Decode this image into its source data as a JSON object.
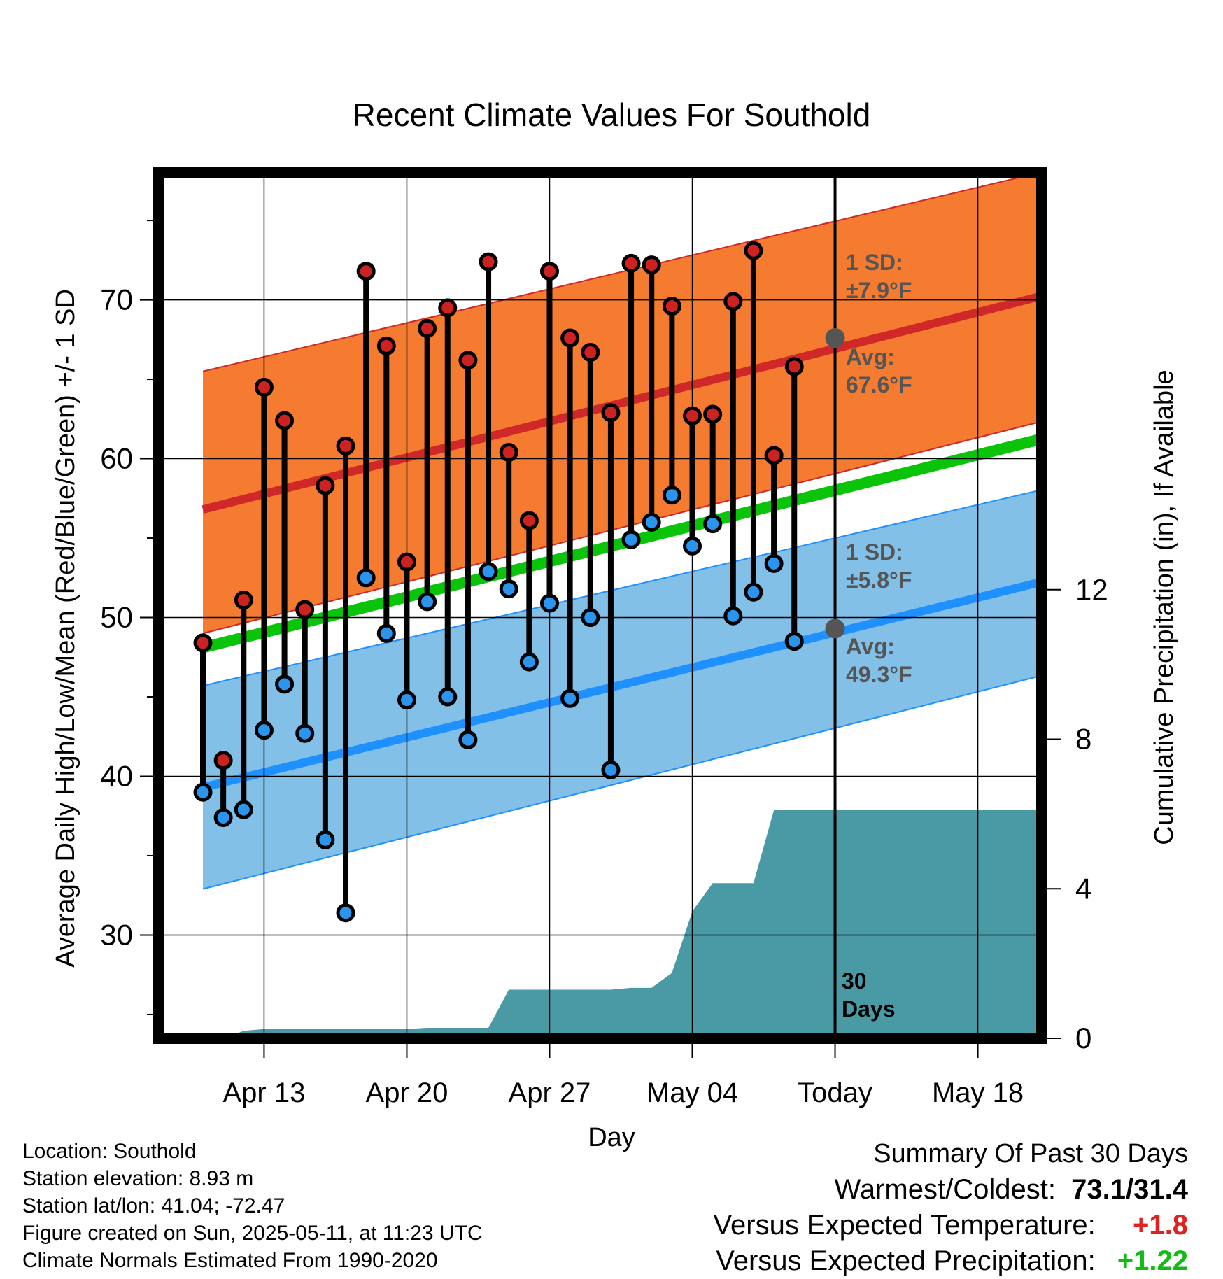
{
  "chart_data": {
    "type": "line",
    "title": "Recent Climate Values For Southold",
    "xlabel": "Day",
    "ylabel": "Average Daily High/Low/Mean (Red/Blue/Green) +/- 1 SD",
    "y2label": "Cumulative Precipitation (in), If Available",
    "xlim": [
      "2025-04-10",
      "2025-05-21"
    ],
    "ylim": [
      23.5,
      78
    ],
    "y2lim": [
      0,
      23.15
    ],
    "yticks": [
      "30",
      "40",
      "50",
      "60",
      "70"
    ],
    "y2ticks": [
      "0",
      "4",
      "8",
      "12"
    ],
    "xticks": [
      {
        "date": "2025-04-13",
        "label": "Apr 13"
      },
      {
        "date": "2025-04-20",
        "label": "Apr 20"
      },
      {
        "date": "2025-04-27",
        "label": "Apr 27"
      },
      {
        "date": "2025-05-04",
        "label": "May 04"
      },
      {
        "date": "2025-05-11",
        "label": "Today"
      },
      {
        "date": "2025-05-18",
        "label": "May 18"
      }
    ],
    "today": "2025-05-11",
    "grid": true,
    "colors": {
      "high_band": "#f47b30",
      "high_line": "#d02828",
      "low_band": "#82c0e8",
      "low_line": "#1e90ff",
      "mean_line": "#0ac40a",
      "precip": "#4a9aa5",
      "high_marker": "#cc2222",
      "low_marker": "#2b95ee",
      "annotation": "#555555"
    },
    "normals": {
      "dates": [
        "2025-04-10",
        "2025-05-21"
      ],
      "avg_high": [
        56.8,
        70.2
      ],
      "avg_low": [
        39.3,
        52.2
      ],
      "avg_mean": [
        48.1,
        61.2
      ],
      "high_sd_band": [
        [
          49.0,
          62.3
        ],
        [
          65.5,
          78.0
        ]
      ],
      "low_sd_band": [
        [
          32.9,
          46.3
        ],
        [
          45.7,
          58.0
        ]
      ]
    },
    "series": [
      {
        "name": "High",
        "dates": [
          "2025-04-10",
          "2025-04-11",
          "2025-04-12",
          "2025-04-13",
          "2025-04-14",
          "2025-04-15",
          "2025-04-16",
          "2025-04-17",
          "2025-04-18",
          "2025-04-19",
          "2025-04-20",
          "2025-04-21",
          "2025-04-22",
          "2025-04-23",
          "2025-04-24",
          "2025-04-25",
          "2025-04-26",
          "2025-04-27",
          "2025-04-28",
          "2025-04-29",
          "2025-04-30",
          "2025-05-01",
          "2025-05-02",
          "2025-05-03",
          "2025-05-04",
          "2025-05-05",
          "2025-05-06",
          "2025-05-07",
          "2025-05-08",
          "2025-05-09",
          "2025-05-10"
        ],
        "values": [
          48.4,
          41.0,
          51.1,
          64.5,
          62.4,
          50.5,
          58.3,
          60.8,
          71.8,
          67.1,
          53.5,
          68.2,
          69.5,
          66.2,
          72.4,
          60.4,
          56.1,
          71.8,
          67.6,
          66.7,
          62.9,
          72.3,
          72.2,
          69.6,
          62.7,
          62.8,
          69.9,
          73.1,
          60.2,
          65.8,
          null
        ]
      },
      {
        "name": "Low",
        "dates": [
          "2025-04-10",
          "2025-04-11",
          "2025-04-12",
          "2025-04-13",
          "2025-04-14",
          "2025-04-15",
          "2025-04-16",
          "2025-04-17",
          "2025-04-18",
          "2025-04-19",
          "2025-04-20",
          "2025-04-21",
          "2025-04-22",
          "2025-04-23",
          "2025-04-24",
          "2025-04-25",
          "2025-04-26",
          "2025-04-27",
          "2025-04-28",
          "2025-04-29",
          "2025-04-30",
          "2025-05-01",
          "2025-05-02",
          "2025-05-03",
          "2025-05-04",
          "2025-05-05",
          "2025-05-06",
          "2025-05-07",
          "2025-05-08",
          "2025-05-09",
          "2025-05-10"
        ],
        "values": [
          39.0,
          37.4,
          37.9,
          42.9,
          45.8,
          42.7,
          36.0,
          31.4,
          52.5,
          49.0,
          44.8,
          51.0,
          45.0,
          42.3,
          52.9,
          51.8,
          47.2,
          50.9,
          44.9,
          50.0,
          40.4,
          54.9,
          56.0,
          57.7,
          54.5,
          55.9,
          50.1,
          51.6,
          53.4,
          48.5,
          null
        ]
      },
      {
        "name": "Cumulative Precipitation",
        "dates": [
          "2025-04-10",
          "2025-04-11",
          "2025-04-12",
          "2025-04-13",
          "2025-04-14",
          "2025-04-15",
          "2025-04-16",
          "2025-04-17",
          "2025-04-18",
          "2025-04-19",
          "2025-04-20",
          "2025-04-21",
          "2025-04-22",
          "2025-04-23",
          "2025-04-24",
          "2025-04-25",
          "2025-04-26",
          "2025-04-27",
          "2025-04-28",
          "2025-04-29",
          "2025-04-30",
          "2025-05-01",
          "2025-05-02",
          "2025-05-03",
          "2025-05-04",
          "2025-05-05",
          "2025-05-06",
          "2025-05-07",
          "2025-05-08",
          "2025-05-09",
          "2025-05-10",
          "2025-05-11",
          "2025-05-21"
        ],
        "values": [
          0.0,
          0.0,
          0.2,
          0.25,
          0.25,
          0.25,
          0.25,
          0.25,
          0.25,
          0.25,
          0.25,
          0.28,
          0.28,
          0.28,
          0.28,
          1.3,
          1.3,
          1.3,
          1.3,
          1.3,
          1.3,
          1.35,
          1.35,
          1.75,
          3.4,
          4.15,
          4.15,
          4.15,
          6.1,
          6.1,
          6.1,
          6.1,
          6.1
        ]
      }
    ],
    "annotations": {
      "high_sd": [
        "1 SD:",
        "±7.9°F"
      ],
      "high_avg": [
        "Avg:",
        "67.6°F"
      ],
      "low_sd": [
        "1 SD:",
        "±5.8°F"
      ],
      "low_avg": [
        "Avg:",
        "49.3°F"
      ],
      "days": [
        "30",
        "Days"
      ]
    },
    "today_avg_high": 67.6,
    "today_avg_low": 49.3
  },
  "station": {
    "location": "Location: Southold",
    "elevation": "Station elevation: 8.93 m",
    "latlon": "Station lat/lon: 41.04; -72.47",
    "created": "Figure created on Sun, 2025-05-11, at 11:23 UTC",
    "normals": "Climate Normals Estimated From 1990-2020"
  },
  "summary": {
    "title": "Summary Of Past 30 Days",
    "warmest_label": "Warmest/Coldest:",
    "warmest_value": "73.1/31.4",
    "temp_label": "Versus Expected Temperature:",
    "temp_value": "+1.8",
    "temp_color": "#dd2222",
    "precip_label": "Versus Expected Precipitation:",
    "precip_value": "+1.22",
    "precip_color": "#11bb11"
  }
}
